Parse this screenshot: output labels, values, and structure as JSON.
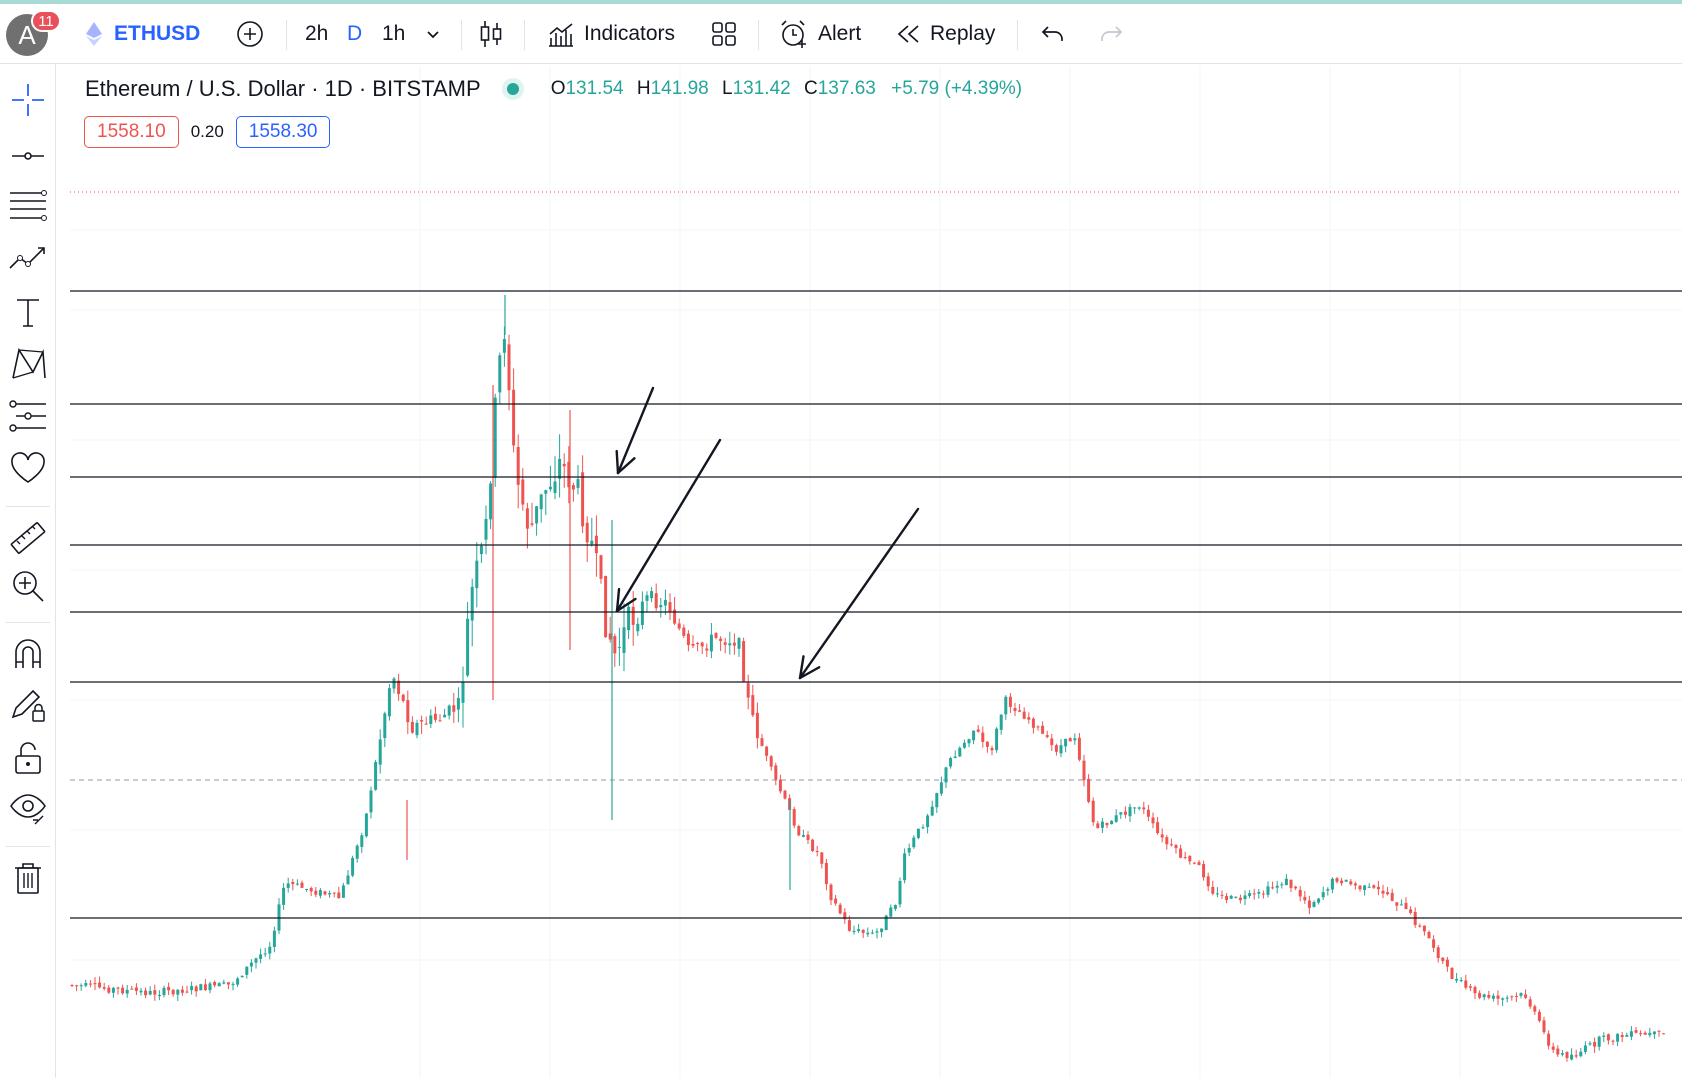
{
  "toolbar": {
    "avatar_letter": "A",
    "notification_count": "11",
    "symbol": "ETHUSD",
    "intervals": [
      "2h",
      "D",
      "1h"
    ],
    "indicators_label": "Indicators",
    "alert_label": "Alert",
    "replay_label": "Replay"
  },
  "legend": {
    "title": "Ethereum / U.S. Dollar · 1D · BITSTAMP",
    "open_key": "O",
    "open": "131.54",
    "high_key": "H",
    "high": "141.98",
    "low_key": "L",
    "low": "131.42",
    "close_key": "C",
    "close": "137.63",
    "change": "+5.79 (+4.39%)",
    "sell_price": "1558.10",
    "spread": "0.20",
    "buy_price": "1558.30"
  },
  "colors": {
    "up": "#26a69a",
    "down": "#ef5350",
    "accent": "#2962ff",
    "line": "#131722"
  },
  "sidebar_icons": [
    "crosshair-icon",
    "trend-line-icon",
    "fib-levels-icon",
    "pattern-icon",
    "text-icon",
    "xabcd-icon",
    "forecast-icon",
    "heart-icon",
    "ruler-icon",
    "zoom-in-icon",
    "magnet-icon",
    "lock-drawing-icon",
    "unlock-icon",
    "eye-icon",
    "trash-icon"
  ]
}
